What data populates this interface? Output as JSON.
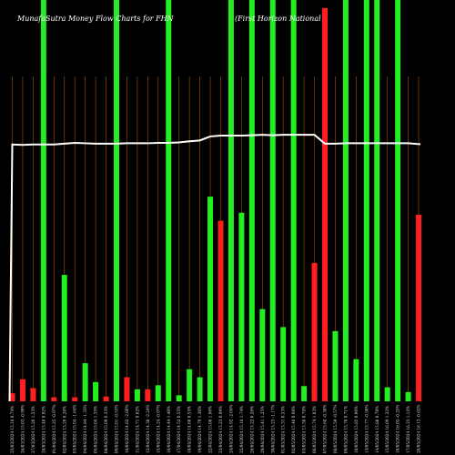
{
  "chart_data": {
    "type": "bar",
    "title": "MunafaSutra  Money Flow  Charts for FHN",
    "subtitle": "(First Horizon National",
    "categories": [
      "25/03/2024",
      "26/03/2024",
      "27/03/2024",
      "28/03/2024",
      "01/04/2024",
      "02/04/2024",
      "03/04/2024",
      "04/04/2024",
      "05/04/2024",
      "08/04/2024",
      "09/04/2024",
      "10/04/2024",
      "11/04/2024",
      "12/04/2024",
      "15/04/2024",
      "16/04/2024",
      "17/04/2024",
      "18/04/2024",
      "19/04/2024",
      "22/04/2024",
      "23/04/2024",
      "24/04/2024",
      "25/04/2024",
      "26/04/2024",
      "29/04/2024",
      "30/04/2024",
      "01/05/2024",
      "02/05/2024",
      "03/05/2024",
      "06/05/2024",
      "07/05/2024",
      "08/05/2024",
      "09/05/2024",
      "10/05/2024",
      "13/05/2024",
      "14/05/2024",
      "15/05/2024",
      "16/05/2024",
      "17/05/2024",
      "20/05/2024"
    ],
    "tick_labels": [
      "25/03/2024 15.18 0.74%",
      "26/03/2024 15.03 -0.99%",
      "27/03/2024 15.26 1.53%",
      "28/03/2024 15.40 0.92%",
      "01/04/2024 15.25 -0.97%",
      "02/04/2024 15.29 0.26%",
      "03/04/2024 15.04 -1.64%",
      "04/04/2024 14.84 -1.33%",
      "05/04/2024 15.04 1.35%",
      "08/04/2024 15.09 0.33%",
      "09/04/2024 15.01 -0.53%",
      "10/04/2024 14.62 -2.60%",
      "11/04/2024 14.71 0.62%",
      "12/04/2024 14.38 -2.24%",
      "15/04/2024 14.24 -0.97%",
      "16/04/2024 14.44 1.40%",
      "17/04/2024 14.52 0.55%",
      "18/04/2024 14.60 0.55%",
      "19/04/2024 14.79 1.30%",
      "22/04/2024 15.08 1.96%",
      "23/04/2024 15.23 0.99%",
      "24/04/2024 14.92 -2.04%",
      "25/04/2024 15.18 1.74%",
      "26/04/2024 15.22 0.26%",
      "29/04/2024 15.41 1.25%",
      "30/04/2024 15.23 -1.17%",
      "01/05/2024 15.31 0.53%",
      "02/05/2024 15.46 0.98%",
      "03/05/2024 15.58 0.78%",
      "06/05/2024 15.74 1.03%",
      "07/05/2024 15.68 -0.38%",
      "08/05/2024 15.59 -0.57%",
      "09/05/2024 15.70 0.71%",
      "10/05/2024 15.85 0.96%",
      "13/05/2024 15.77 -0.50%",
      "14/05/2024 15.88 0.70%",
      "15/05/2024 16.09 1.32%",
      "16/05/2024 16.05 -0.25%",
      "17/05/2024 16.23 1.12%",
      "20/05/2024 16.13 -0.62%"
    ],
    "values": [
      2,
      5.5,
      3.3,
      100,
      1,
      31.5,
      1,
      9.5,
      4.8,
      1.2,
      100,
      6,
      3,
      3,
      4,
      100,
      1.5,
      8,
      6,
      51,
      45,
      100,
      47,
      100,
      23,
      100,
      18.5,
      100,
      3.8,
      34.5,
      98,
      17.5,
      100,
      10.5,
      100,
      100,
      3.5,
      100,
      2.3,
      46.5
    ],
    "colors": [
      "red",
      "red",
      "red",
      "green",
      "red",
      "green",
      "red",
      "green",
      "green",
      "red",
      "green",
      "red",
      "green",
      "red",
      "green",
      "green",
      "green",
      "green",
      "green",
      "green",
      "red",
      "green",
      "green",
      "green",
      "green",
      "green",
      "green",
      "green",
      "green",
      "red",
      "red",
      "green",
      "green",
      "green",
      "green",
      "green",
      "green",
      "green",
      "green",
      "red"
    ],
    "line": [
      64,
      63.9,
      64,
      64,
      64,
      64.2,
      64.4,
      64.3,
      64.2,
      64.2,
      64.2,
      64.3,
      64.3,
      64.3,
      64.4,
      64.4,
      64.5,
      64.8,
      65,
      66,
      66.2,
      66.2,
      66.2,
      66.3,
      66.4,
      66.3,
      66.4,
      66.4,
      66.4,
      66.4,
      64.2,
      64.2,
      64.3,
      64.3,
      64.3,
      64.3,
      64.3,
      64.3,
      64.3,
      64.1
    ],
    "line_start": 0,
    "ylim": [
      0,
      100
    ],
    "colors_hex": {
      "green": "#22ee22",
      "red": "#ff1f1f",
      "line": "#ffffff",
      "gridline": "#8b4a00"
    }
  }
}
